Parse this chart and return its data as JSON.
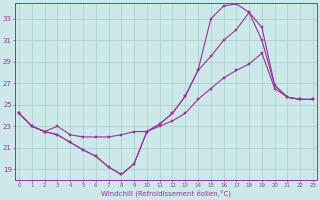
{
  "background_color": "#cce8e8",
  "grid_color": "#aacccc",
  "line_color": "#993399",
  "xlabel": "Windchill (Refroidissement éolien,°C)",
  "xlim": [
    -0.3,
    23.3
  ],
  "ylim": [
    18.0,
    34.5
  ],
  "yticks": [
    19,
    21,
    23,
    25,
    27,
    29,
    31,
    33
  ],
  "xticks": [
    0,
    1,
    2,
    3,
    4,
    5,
    6,
    7,
    8,
    9,
    10,
    11,
    12,
    13,
    14,
    15,
    16,
    17,
    18,
    19,
    20,
    21,
    22,
    23
  ],
  "series1_x": [
    0,
    1,
    2,
    3,
    4,
    5,
    6,
    7,
    8,
    9,
    10,
    11,
    12,
    13,
    14,
    15,
    16,
    17,
    18,
    19,
    20,
    21,
    22,
    23
  ],
  "series1_y": [
    24.2,
    23.0,
    22.5,
    22.2,
    21.5,
    20.8,
    20.2,
    19.2,
    18.5,
    19.5,
    22.5,
    23.2,
    24.2,
    25.8,
    28.2,
    33.0,
    34.2,
    34.4,
    33.6,
    32.2,
    26.8,
    25.7,
    25.5,
    25.5
  ],
  "series2_x": [
    0,
    1,
    2,
    3,
    4,
    5,
    6,
    7,
    8,
    9,
    10,
    11,
    12,
    13,
    14,
    15,
    16,
    17,
    18,
    19,
    20,
    21,
    22,
    23
  ],
  "series2_y": [
    24.2,
    23.0,
    22.5,
    22.2,
    21.5,
    20.8,
    20.2,
    19.2,
    18.5,
    19.5,
    22.5,
    23.2,
    24.2,
    25.8,
    28.2,
    29.5,
    31.0,
    32.0,
    33.6,
    31.0,
    26.8,
    25.7,
    25.5,
    25.5
  ],
  "series3_x": [
    0,
    1,
    2,
    3,
    4,
    5,
    6,
    7,
    8,
    9,
    10,
    11,
    12,
    13,
    14,
    15,
    16,
    17,
    18,
    19,
    20,
    21,
    22,
    23
  ],
  "series3_y": [
    24.2,
    23.0,
    22.5,
    23.0,
    22.2,
    22.0,
    22.0,
    22.0,
    22.2,
    22.5,
    22.5,
    23.0,
    23.5,
    24.2,
    25.5,
    26.5,
    27.5,
    28.2,
    28.8,
    29.8,
    26.5,
    25.7,
    25.5,
    25.5
  ]
}
